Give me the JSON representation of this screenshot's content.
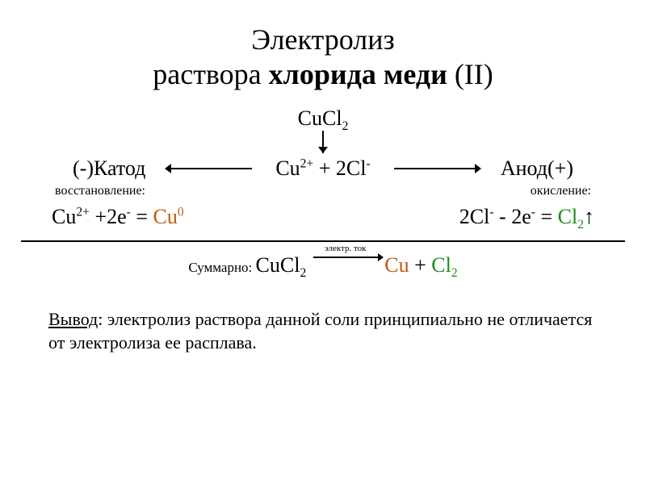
{
  "colors": {
    "text": "#000000",
    "orange": "#c05a11",
    "green": "#1f8a1f",
    "background": "#ffffff",
    "divider": "#000000"
  },
  "typography": {
    "title_fontsize": 36,
    "body_fontsize": 26,
    "smalllabel_fontsize": 16,
    "summarylabel_fontsize": 17,
    "overtext_fontsize": 11,
    "conclusion_fontsize": 22,
    "font_family": "Times New Roman"
  },
  "title": {
    "line1": "Электролиз",
    "line2_a": "раствора ",
    "line2_b": "хлорида меди",
    "line2_c": " (II)"
  },
  "top_formula": {
    "text": "CuCl",
    "sub": "2"
  },
  "diagram": {
    "cathode_label": "(-)Катод",
    "cathode_sub": "восстановление:",
    "anode_label": "Анод(+)",
    "anode_sub": "окисление:",
    "ions": {
      "cu": "Cu",
      "cu_charge": "2+",
      "plus": " + 2Cl",
      "cl_charge": "-"
    }
  },
  "half": {
    "left": {
      "a": "Cu",
      "a_sup": "2+",
      "b": " +2e",
      "b_sup": "-",
      "eq": " = ",
      "p": "Cu",
      "p_sup": "0"
    },
    "right": {
      "a": "2Cl",
      "a_sup": "-",
      "b": " - 2e",
      "b_sup": "-",
      "eq": " = ",
      "p": "Cl",
      "p_sub": "2",
      "arrow": "↑"
    }
  },
  "summary": {
    "label": "Суммарно: ",
    "lhs": "CuCl",
    "lhs_sub": "2",
    "overtext": "электр. ток",
    "p1": "Cu",
    "plus": " + ",
    "p2": "Cl",
    "p2_sub": "2"
  },
  "conclusion": {
    "lead": "Вывод",
    "body": ": электролиз раствора данной соли принципиально не отличается от электролиза ее расплава."
  }
}
